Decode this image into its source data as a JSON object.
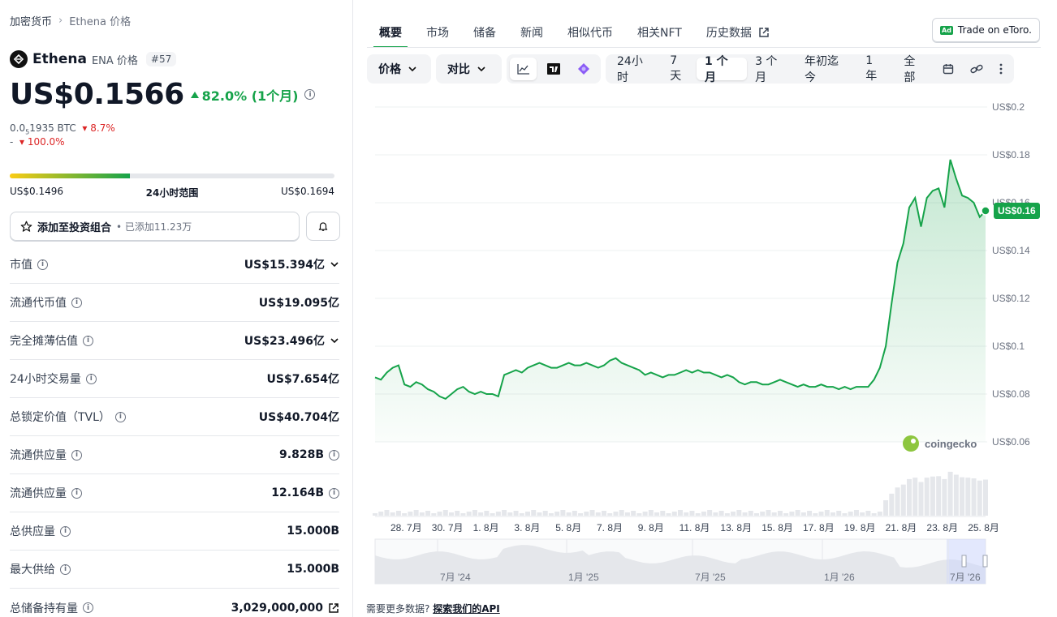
{
  "breadcrumb": {
    "root": "加密货币",
    "current": "Ethena 价格"
  },
  "coin": {
    "name": "Ethena",
    "symbol_label": "ENA 价格",
    "rank": "#57"
  },
  "price": {
    "value": "US$0.1566",
    "change": "82.0% (1个月)",
    "btc_prefix": "0.0",
    "btc_sub": "5",
    "btc_suffix": "1935 BTC",
    "btc_change": "8.7%",
    "eth_value": "-",
    "eth_change": "100.0%"
  },
  "range24h": {
    "low": "US$0.1496",
    "label": "24小时范围",
    "high": "US$0.1694",
    "fill_fraction": 0.37
  },
  "portfolio": {
    "label": "添加至投资组合",
    "added": "• 已添加11.23万"
  },
  "stats": [
    {
      "label": "市值",
      "value": "US$15.394亿"
    },
    {
      "label": "流通代币值",
      "value": "US$19.095亿"
    },
    {
      "label": "完全摊薄估值",
      "value": "US$23.496亿"
    },
    {
      "label": "24小时交易量",
      "value": "US$7.654亿"
    },
    {
      "label": "总锁定价值（TVL）",
      "value": "US$40.704亿"
    },
    {
      "label": "流通供应量",
      "value": "9.828B"
    },
    {
      "label": "流通供应量",
      "value": "12.164B"
    },
    {
      "label": "总供应量",
      "value": "15.000B"
    },
    {
      "label": "最大供给",
      "value": "15.000B"
    },
    {
      "label": "总储备持有量",
      "value": "3,029,000,000"
    }
  ],
  "tabs": [
    "概要",
    "市场",
    "储备",
    "新闻",
    "相似代币",
    "相关NFT",
    "历史数据"
  ],
  "etoro": {
    "ad": "Ad",
    "label": "Trade on eToro."
  },
  "toolbar": {
    "price_label": "价格",
    "compare_label": "对比",
    "ranges": [
      "24小时",
      "7天",
      "1 个月",
      "3 个月",
      "年初迄今",
      "1 年",
      "全部"
    ],
    "selected_range": "1 个月"
  },
  "chart_data": {
    "type": "line",
    "series": [
      {
        "values": [
          0.087,
          0.086,
          0.089,
          0.091,
          0.092,
          0.084,
          0.083,
          0.085,
          0.084,
          0.082,
          0.081,
          0.079,
          0.078,
          0.08,
          0.082,
          0.083,
          0.081,
          0.08,
          0.081,
          0.08,
          0.08,
          0.079,
          0.088,
          0.089,
          0.09,
          0.089,
          0.091,
          0.092,
          0.093,
          0.092,
          0.091,
          0.091,
          0.092,
          0.093,
          0.092,
          0.092,
          0.093,
          0.092,
          0.091,
          0.092,
          0.094,
          0.095,
          0.093,
          0.092,
          0.091,
          0.09,
          0.088,
          0.089,
          0.088,
          0.087,
          0.088,
          0.088,
          0.089,
          0.09,
          0.089,
          0.09,
          0.089,
          0.089,
          0.088,
          0.087,
          0.088,
          0.087,
          0.085,
          0.084,
          0.085,
          0.085,
          0.084,
          0.084,
          0.085,
          0.086,
          0.085,
          0.084,
          0.083,
          0.084,
          0.083,
          0.083,
          0.084,
          0.083,
          0.083,
          0.082,
          0.083,
          0.082,
          0.083,
          0.083,
          0.083,
          0.086,
          0.091,
          0.1,
          0.118,
          0.135,
          0.143,
          0.158,
          0.162,
          0.15,
          0.162,
          0.165,
          0.166,
          0.158,
          0.178,
          0.17,
          0.163,
          0.162,
          0.16,
          0.154,
          0.1566
        ]
      }
    ],
    "x_ticks": [
      "28. 7月",
      "30. 7月",
      "1. 8月",
      "3. 8月",
      "5. 8月",
      "7. 8月",
      "9. 8月",
      "11. 8月",
      "13. 8月",
      "15. 8月",
      "17. 8月",
      "19. 8月",
      "21. 8月",
      "23. 8月",
      "25. 8月"
    ],
    "y_ticks": [
      "US$0.2",
      "US$0.18",
      "US$0.16",
      "US$0.14",
      "US$0.12",
      "US$0.1",
      "US$0.08",
      "US$0.06"
    ],
    "ylim": [
      0.06,
      0.2
    ],
    "last_label": "US$0.16",
    "watermark": "coingecko",
    "overview_labels": [
      "7月 '24",
      "1月 '25",
      "7月 '25",
      "1月 '26",
      "7月 '26"
    ]
  },
  "footer": {
    "text": "需要更多数据?",
    "link": "探索我们的API"
  }
}
